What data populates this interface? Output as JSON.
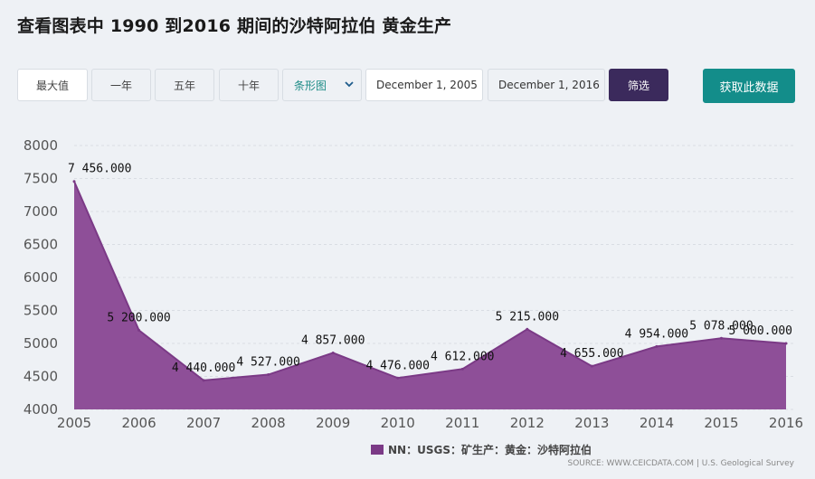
{
  "page": {
    "title": "查看图表中 1990 到2016 期间的沙特阿拉伯 黄金生产"
  },
  "toolbar": {
    "max_label": "最大值",
    "one_year_label": "一年",
    "five_year_label": "五年",
    "ten_year_label": "十年",
    "chart_type_value": "条形图",
    "start_date": "December 1, 2005",
    "end_date": "December 1, 2016",
    "filter_label": "筛选",
    "fetch_label": "获取此数据"
  },
  "colors": {
    "series": "#7b3a86",
    "area_fill": "#8e4f98",
    "filter_button": "#3b2a5c",
    "fetch_button": "#138d8a",
    "select_text": "#1e8c87"
  },
  "chart_data": {
    "type": "area",
    "x": [
      "2005",
      "2006",
      "2007",
      "2008",
      "2009",
      "2010",
      "2011",
      "2012",
      "2013",
      "2014",
      "2015",
      "2016"
    ],
    "series": [
      {
        "name": "NN：USGS：矿生产：黄金：沙特阿拉伯",
        "values": [
          7456,
          5200,
          4440,
          4527,
          4857,
          4476,
          4612,
          5215,
          4655,
          4954,
          5078,
          5000
        ],
        "labels": [
          "7 456.000",
          "5 200.000",
          "4 440.000",
          "4 527.000",
          "4 857.000",
          "4 476.000",
          "4 612.000",
          "5 215.000",
          "4 655.000",
          "4 954.000",
          "5 078.000",
          "5 000.000"
        ]
      }
    ],
    "yticks": [
      "4000",
      "4500",
      "5000",
      "5500",
      "6000",
      "6500",
      "7000",
      "7500",
      "8000"
    ],
    "ylim": [
      4000,
      8000
    ],
    "grid": true,
    "legend": "bottom-center",
    "xlabel": "",
    "ylabel": ""
  },
  "footer": {
    "source": "SOURCE: WWW.CEICDATA.COM | U.S. Geological Survey"
  }
}
